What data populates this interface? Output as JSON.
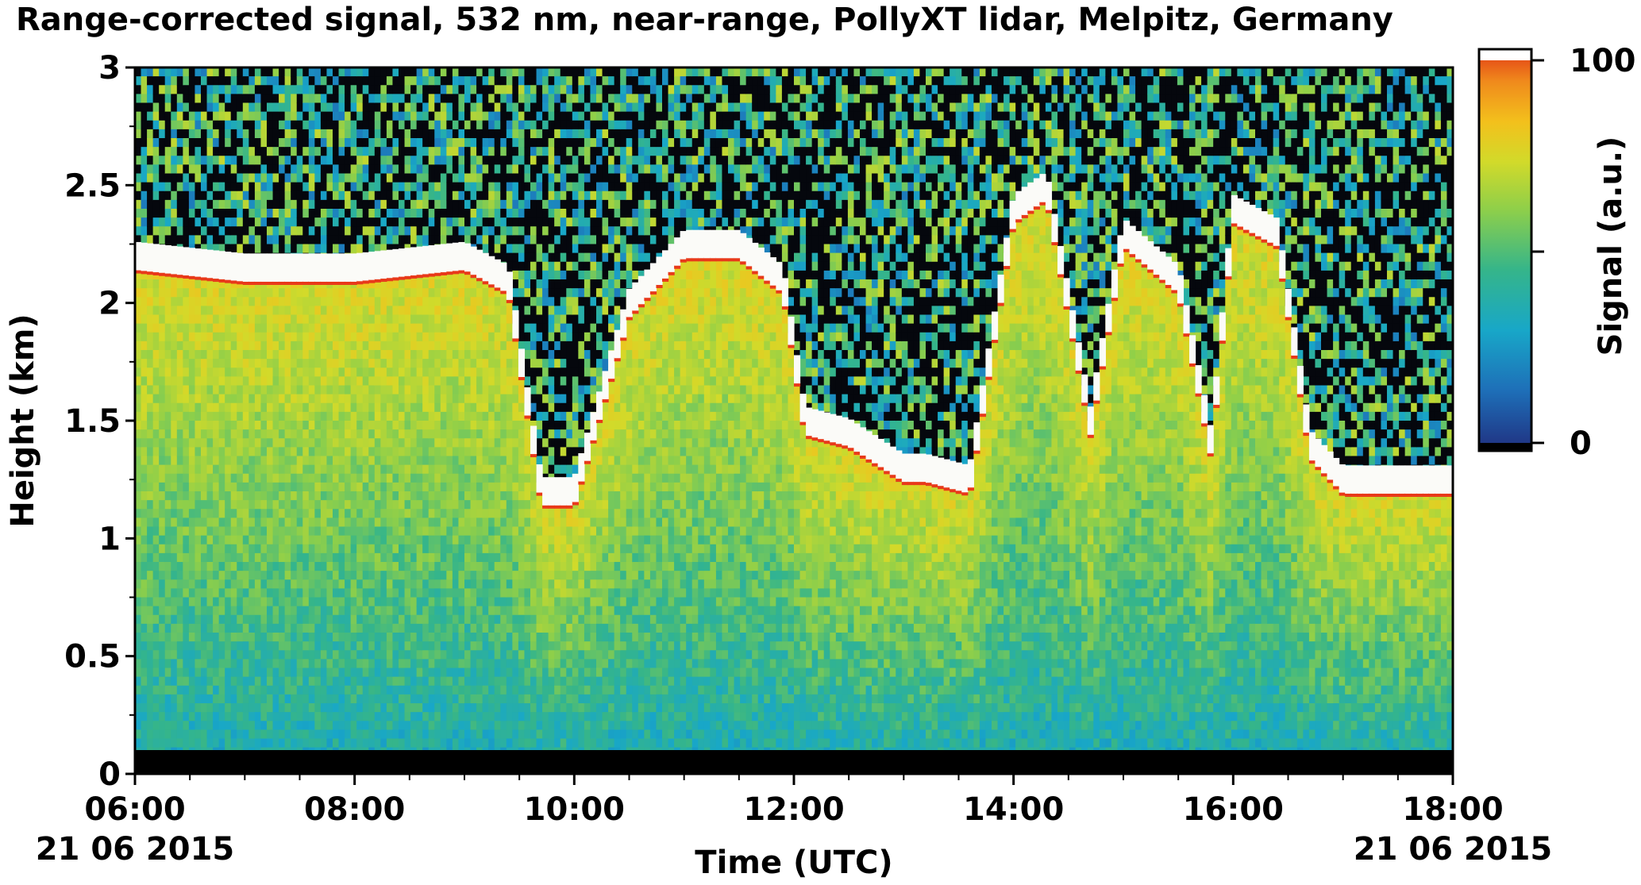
{
  "chart_data": {
    "type": "heatmap",
    "title": "Range-corrected signal, 532 nm, near-range, PollyXT lidar, Melpitz, Germany",
    "xlabel": "Time (UTC)",
    "ylabel": "Height (km)",
    "colorbar_label": "Signal (a.u.)",
    "x_range": [
      "06:00",
      "18:00"
    ],
    "x_ticks": [
      {
        "time": "06:00",
        "date": "21 06 2015"
      },
      {
        "time": "08:00",
        "date": ""
      },
      {
        "time": "10:00",
        "date": ""
      },
      {
        "time": "12:00",
        "date": ""
      },
      {
        "time": "14:00",
        "date": ""
      },
      {
        "time": "16:00",
        "date": ""
      },
      {
        "time": "18:00",
        "date": "21 06 2015"
      }
    ],
    "x_ticks_hours": [
      6,
      8,
      10,
      12,
      14,
      16,
      18
    ],
    "y_range": [
      0,
      3
    ],
    "y_ticks": [
      {
        "value": 0,
        "label": "0"
      },
      {
        "value": 0.5,
        "label": "0.5"
      },
      {
        "value": 1,
        "label": "1"
      },
      {
        "value": 1.5,
        "label": "1.5"
      },
      {
        "value": 2,
        "label": "2"
      },
      {
        "value": 2.5,
        "label": "2.5"
      },
      {
        "value": 3,
        "label": "3"
      }
    ],
    "colorbar_range": [
      0,
      100
    ],
    "colorbar_ticks": [
      {
        "value": 0,
        "label": "0"
      },
      {
        "value": 50,
        "label": ""
      },
      {
        "value": 100,
        "label": "100"
      }
    ],
    "colormap": [
      "#203080",
      "#1e6fb8",
      "#18a7c8",
      "#35b58a",
      "#8ecf4a",
      "#d2da2a",
      "#f3c01c",
      "#f08a1c",
      "#e23a16"
    ],
    "no_data_height_km": 0.1,
    "boundary_layer_top_km": [
      [
        6.0,
        2.2
      ],
      [
        7.0,
        2.15
      ],
      [
        8.0,
        2.15
      ],
      [
        9.0,
        2.2
      ],
      [
        9.4,
        2.1
      ],
      [
        9.7,
        1.2
      ],
      [
        10.0,
        1.2
      ],
      [
        10.5,
        2.0
      ],
      [
        11.0,
        2.25
      ],
      [
        11.5,
        2.25
      ],
      [
        11.9,
        2.1
      ],
      [
        12.1,
        1.5
      ],
      [
        12.5,
        1.45
      ],
      [
        13.0,
        1.3
      ],
      [
        13.2,
        1.3
      ],
      [
        13.6,
        1.25
      ],
      [
        14.0,
        2.4
      ],
      [
        14.3,
        2.5
      ],
      [
        14.7,
        1.5
      ],
      [
        15.0,
        2.3
      ],
      [
        15.5,
        2.1
      ],
      [
        15.8,
        1.4
      ],
      [
        16.0,
        2.4
      ],
      [
        16.4,
        2.3
      ],
      [
        16.7,
        1.4
      ],
      [
        17.0,
        1.25
      ],
      [
        17.5,
        1.25
      ],
      [
        18.0,
        1.25
      ]
    ]
  }
}
